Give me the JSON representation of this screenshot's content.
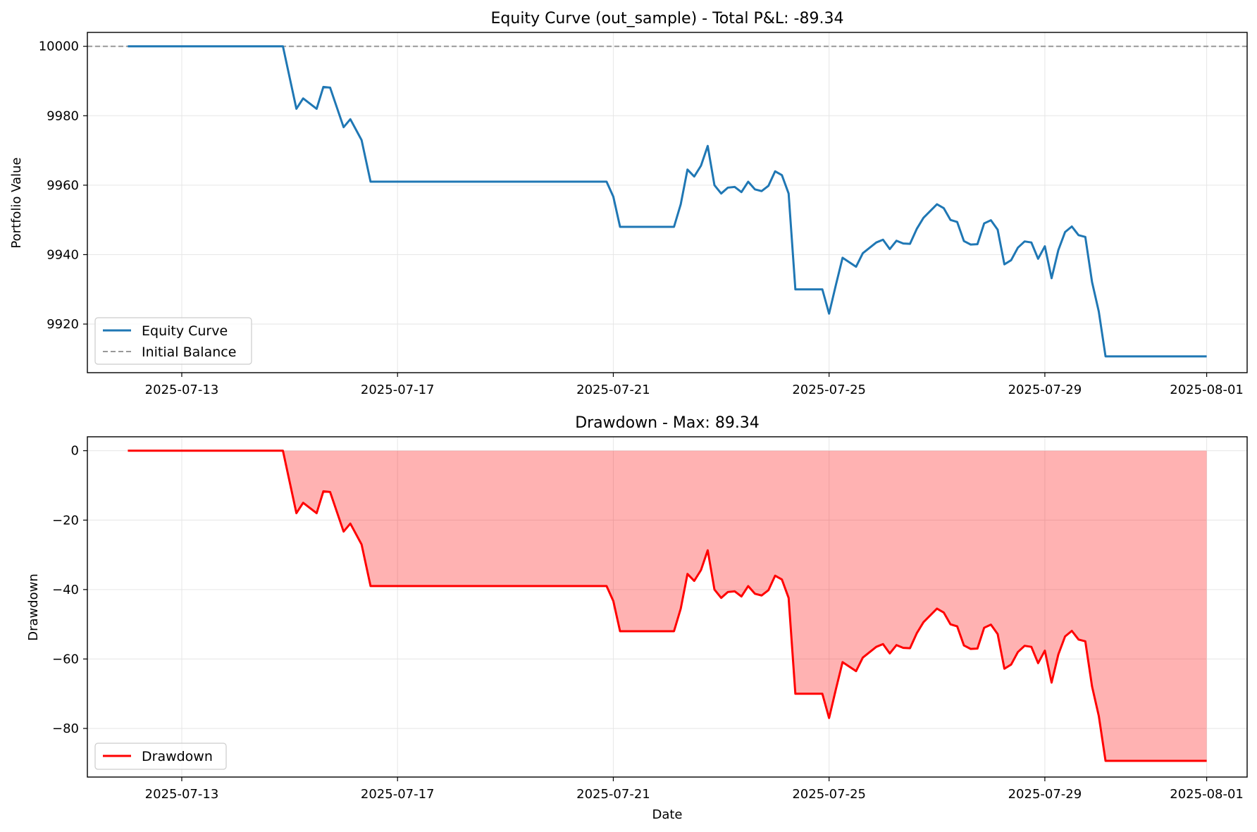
{
  "chart_data": [
    {
      "type": "line",
      "title": "Equity Curve (out_sample) - Total P&L: -89.34",
      "xlabel": "",
      "ylabel": "Portfolio Value",
      "ylim": [
        9906,
        10004
      ],
      "xlim": [
        "2025-07-11T06:00",
        "2025-08-01T18:00"
      ],
      "grid": true,
      "legend_position": "lower-left",
      "x_ticks": [
        "2025-07-13",
        "2025-07-17",
        "2025-07-21",
        "2025-07-25",
        "2025-07-29",
        "2025-08-01"
      ],
      "y_ticks": [
        9920,
        9940,
        9960,
        9980,
        10000
      ],
      "series": [
        {
          "name": "Equity Curve",
          "color": "#1f77b4",
          "style": "solid",
          "x": [
            "2025-07-12T00:00",
            "2025-07-14T21:00",
            "2025-07-15T03:00",
            "2025-07-15T06:00",
            "2025-07-15T12:00",
            "2025-07-15T15:00",
            "2025-07-15T18:00",
            "2025-07-16T00:00",
            "2025-07-16T03:00",
            "2025-07-16T08:00",
            "2025-07-16T12:00",
            "2025-07-20T21:00",
            "2025-07-21T00:00",
            "2025-07-21T03:00",
            "2025-07-22T03:00",
            "2025-07-22T06:00",
            "2025-07-22T09:00",
            "2025-07-22T12:00",
            "2025-07-22T15:00",
            "2025-07-22T18:00",
            "2025-07-22T21:00",
            "2025-07-23T00:00",
            "2025-07-23T03:00",
            "2025-07-23T06:00",
            "2025-07-23T09:00",
            "2025-07-23T12:00",
            "2025-07-23T15:00",
            "2025-07-23T18:00",
            "2025-07-23T21:00",
            "2025-07-24T00:00",
            "2025-07-24T03:00",
            "2025-07-24T06:00",
            "2025-07-24T09:00",
            "2025-07-24T21:00",
            "2025-07-25T00:00",
            "2025-07-25T03:00",
            "2025-07-25T06:00",
            "2025-07-25T12:00",
            "2025-07-25T15:00",
            "2025-07-25T21:00",
            "2025-07-26T00:00",
            "2025-07-26T03:00",
            "2025-07-26T06:00",
            "2025-07-26T09:00",
            "2025-07-26T12:00",
            "2025-07-26T15:00",
            "2025-07-26T18:00",
            "2025-07-27T00:00",
            "2025-07-27T03:00",
            "2025-07-27T06:00",
            "2025-07-27T09:00",
            "2025-07-27T12:00",
            "2025-07-27T15:00",
            "2025-07-27T18:00",
            "2025-07-27T21:00",
            "2025-07-28T00:00",
            "2025-07-28T03:00",
            "2025-07-28T06:00",
            "2025-07-28T09:00",
            "2025-07-28T12:00",
            "2025-07-28T15:00",
            "2025-07-28T18:00",
            "2025-07-28T21:00",
            "2025-07-29T00:00",
            "2025-07-29T03:00",
            "2025-07-29T06:00",
            "2025-07-29T09:00",
            "2025-07-29T12:00",
            "2025-07-29T15:00",
            "2025-07-29T18:00",
            "2025-07-29T21:00",
            "2025-07-30T00:00",
            "2025-07-30T03:00",
            "2025-07-30T06:00",
            "2025-07-30T09:00",
            "2025-07-30T12:00",
            "2025-07-30T15:00",
            "2025-07-30T18:00",
            "2025-07-30T21:00",
            "2025-07-31T00:00",
            "2025-07-31T03:00",
            "2025-07-31T06:00",
            "2025-07-31T09:00",
            "2025-07-31T12:00",
            "2025-07-31T15:00",
            "2025-07-31T18:00",
            "2025-07-31T21:00",
            "2025-08-01T00:00"
          ],
          "values": [
            10000,
            10000,
            9982,
            9985,
            9982,
            9988.3,
            9988.1,
            9976.7,
            9979,
            9973,
            9961,
            9961,
            9956.7,
            9948,
            9948,
            9954.5,
            9964.5,
            9962.5,
            9965.6,
            9971.3,
            9960,
            9957.6,
            9959.3,
            9959.5,
            9958,
            9961,
            9958.8,
            9958.3,
            9959.8,
            9964,
            9962.9,
            9957.6,
            9930,
            9930,
            9923,
            9931.2,
            9939.1,
            9936.5,
            9940.4,
            9943.5,
            9944.3,
            9941.6,
            9944,
            9943.2,
            9943.1,
            9947.4,
            9950.6,
            9954.5,
            9953.4,
            9950,
            9949.4,
            9943.9,
            9942.9,
            9943,
            9949,
            9949.9,
            9947.2,
            9937.2,
            9938.4,
            9942,
            9943.8,
            9943.5,
            9938.8,
            9942.4,
            9933.2,
            9941.3,
            9946.5,
            9948.1,
            9945.6,
            9945.1,
            9932.1,
            9923.6,
            9910.7,
            9910.7,
            9910.7,
            9910.7,
            9910.7,
            9910.7,
            9910.7,
            9910.7,
            9910.7,
            9910.7,
            9910.7,
            9910.7,
            9910.7,
            9910.7,
            9910.7,
            9910.7
          ]
        },
        {
          "name": "Initial Balance",
          "color": "#999999",
          "style": "dashed",
          "y": 10000
        }
      ]
    },
    {
      "type": "area",
      "title": "Drawdown - Max: 89.34",
      "xlabel": "Date",
      "ylabel": "Drawdown",
      "ylim": [
        -94,
        4
      ],
      "xlim": [
        "2025-07-11T06:00",
        "2025-08-01T18:00"
      ],
      "grid": true,
      "legend_position": "lower-left",
      "x_ticks": [
        "2025-07-13",
        "2025-07-17",
        "2025-07-21",
        "2025-07-25",
        "2025-07-29",
        "2025-08-01"
      ],
      "y_ticks": [
        -80,
        -60,
        -40,
        -20,
        0
      ],
      "y_tick_labels": [
        "−80",
        "−60",
        "−40",
        "−20",
        "0"
      ],
      "series": [
        {
          "name": "Drawdown",
          "color": "#ff0000",
          "fill_color": "#ff0000",
          "x": [
            "2025-07-12T00:00",
            "2025-07-14T21:00",
            "2025-07-15T03:00",
            "2025-07-15T06:00",
            "2025-07-15T12:00",
            "2025-07-15T15:00",
            "2025-07-15T18:00",
            "2025-07-16T00:00",
            "2025-07-16T03:00",
            "2025-07-16T08:00",
            "2025-07-16T12:00",
            "2025-07-20T21:00",
            "2025-07-21T00:00",
            "2025-07-21T03:00",
            "2025-07-22T03:00",
            "2025-07-22T06:00",
            "2025-07-22T09:00",
            "2025-07-22T12:00",
            "2025-07-22T15:00",
            "2025-07-22T18:00",
            "2025-07-22T21:00",
            "2025-07-23T00:00",
            "2025-07-23T03:00",
            "2025-07-23T06:00",
            "2025-07-23T09:00",
            "2025-07-23T12:00",
            "2025-07-23T15:00",
            "2025-07-23T18:00",
            "2025-07-23T21:00",
            "2025-07-24T00:00",
            "2025-07-24T03:00",
            "2025-07-24T06:00",
            "2025-07-24T09:00",
            "2025-07-24T21:00",
            "2025-07-25T00:00",
            "2025-07-25T03:00",
            "2025-07-25T06:00",
            "2025-07-25T12:00",
            "2025-07-25T15:00",
            "2025-07-25T21:00",
            "2025-07-26T00:00",
            "2025-07-26T03:00",
            "2025-07-26T06:00",
            "2025-07-26T09:00",
            "2025-07-26T12:00",
            "2025-07-26T15:00",
            "2025-07-26T18:00",
            "2025-07-27T00:00",
            "2025-07-27T03:00",
            "2025-07-27T06:00",
            "2025-07-27T09:00",
            "2025-07-27T12:00",
            "2025-07-27T15:00",
            "2025-07-27T18:00",
            "2025-07-27T21:00",
            "2025-07-28T00:00",
            "2025-07-28T03:00",
            "2025-07-28T06:00",
            "2025-07-28T09:00",
            "2025-07-28T12:00",
            "2025-07-28T15:00",
            "2025-07-28T18:00",
            "2025-07-28T21:00",
            "2025-07-29T00:00",
            "2025-07-29T03:00",
            "2025-07-29T06:00",
            "2025-07-29T09:00",
            "2025-07-29T12:00",
            "2025-07-29T15:00",
            "2025-07-29T18:00",
            "2025-07-29T21:00",
            "2025-07-30T00:00",
            "2025-07-30T03:00",
            "2025-07-30T06:00",
            "2025-07-30T09:00",
            "2025-07-30T12:00",
            "2025-07-30T15:00",
            "2025-07-30T18:00",
            "2025-07-30T21:00",
            "2025-07-31T00:00",
            "2025-07-31T03:00",
            "2025-07-31T06:00",
            "2025-07-31T09:00",
            "2025-07-31T12:00",
            "2025-07-31T15:00",
            "2025-07-31T18:00",
            "2025-07-31T21:00",
            "2025-08-01T00:00"
          ],
          "values": [
            0,
            0,
            -18,
            -15,
            -18,
            -11.7,
            -11.9,
            -23.3,
            -21,
            -27,
            -39,
            -39,
            -43.3,
            -52,
            -52,
            -45.5,
            -35.5,
            -37.5,
            -34.4,
            -28.7,
            -40,
            -42.4,
            -40.7,
            -40.5,
            -42,
            -39,
            -41.2,
            -41.7,
            -40.2,
            -36,
            -37.1,
            -42.4,
            -70,
            -70,
            -77,
            -68.8,
            -60.9,
            -63.5,
            -59.6,
            -56.5,
            -55.7,
            -58.4,
            -56,
            -56.8,
            -56.9,
            -52.6,
            -49.4,
            -45.5,
            -46.6,
            -50,
            -50.6,
            -56.1,
            -57.1,
            -57,
            -51,
            -50.1,
            -52.8,
            -62.8,
            -61.6,
            -58,
            -56.2,
            -56.5,
            -61.2,
            -57.6,
            -66.8,
            -58.7,
            -53.5,
            -51.9,
            -54.4,
            -54.9,
            -67.9,
            -76.4,
            -89.34,
            -89.34,
            -89.34,
            -89.34,
            -89.34,
            -89.34,
            -89.34,
            -89.34,
            -89.34,
            -89.34,
            -89.34,
            -89.34,
            -89.34,
            -89.34,
            -89.34,
            -89.34
          ]
        }
      ]
    }
  ]
}
